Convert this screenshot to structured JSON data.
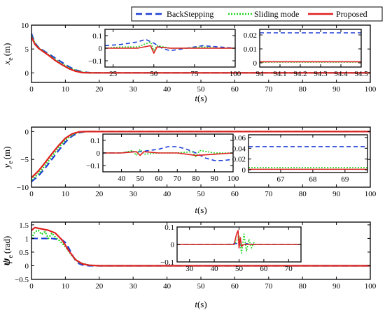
{
  "legend": {
    "entries": [
      {
        "label": "BackStepping",
        "color": "#1f3fd6",
        "dash": "9,5"
      },
      {
        "label": "Sliding mode",
        "color": "#22d622",
        "dash": "2,2"
      },
      {
        "label": "Proposed",
        "color": "#e02020",
        "dash": ""
      }
    ]
  },
  "chart_data": [
    {
      "type": "line",
      "ylabel_main": "x",
      "ylabel_sub": "e",
      "ylabel_unit": "(m)",
      "xlabel_main": "t",
      "xlabel_unit": "(s)",
      "xlim": [
        0,
        100
      ],
      "ylim": [
        -2,
        10
      ],
      "xticks": [
        0,
        10,
        20,
        30,
        40,
        50,
        60,
        70,
        80,
        90,
        100
      ],
      "yticks": [
        0,
        5,
        10
      ],
      "series": [
        {
          "x": [
            0,
            1,
            2,
            3,
            5,
            7,
            9,
            11,
            13,
            15,
            17,
            20,
            100
          ],
          "y": [
            8.2,
            6.3,
            5.4,
            4.9,
            4.0,
            3.1,
            2.2,
            1.3,
            0.6,
            0.2,
            0.05,
            0.0,
            0.0
          ]
        },
        {
          "x": [
            0,
            1,
            2,
            3,
            5,
            7,
            9,
            11,
            13,
            15,
            17,
            20,
            100
          ],
          "y": [
            7.8,
            6.2,
            5.3,
            4.8,
            3.8,
            2.8,
            1.9,
            1.1,
            0.5,
            0.15,
            0.03,
            0.0,
            0.0
          ]
        },
        {
          "x": [
            0,
            1,
            2,
            3,
            5,
            7,
            9,
            11,
            13,
            15,
            17,
            20,
            100
          ],
          "y": [
            7.5,
            6.0,
            5.2,
            4.7,
            3.7,
            2.6,
            1.7,
            0.9,
            0.35,
            0.05,
            0.0,
            0.0,
            0.0
          ]
        }
      ],
      "insets": [
        {
          "xlim": [
            20,
            100
          ],
          "ylim": [
            -0.15,
            0.15
          ],
          "xticks": [
            25,
            50,
            75,
            100
          ],
          "yticks": [
            -0.1,
            0,
            0.1
          ],
          "series": [
            {
              "x": [
                20,
                30,
                40,
                45,
                50,
                55,
                60,
                70,
                80,
                90,
                100
              ],
              "y": [
                0.02,
                0.03,
                0.05,
                0.07,
                0.04,
                0.0,
                -0.02,
                0.0,
                0.02,
                0.01,
                0.0
              ]
            },
            {
              "x": [
                20,
                30,
                40,
                48,
                50,
                52,
                60,
                70,
                80,
                90,
                100
              ],
              "y": [
                0.0,
                0.01,
                0.01,
                0.05,
                -0.02,
                0.02,
                0.0,
                0.0,
                0.01,
                0.0,
                0.0
              ]
            },
            {
              "x": [
                20,
                30,
                40,
                48,
                50,
                52,
                60,
                70,
                80,
                90,
                100
              ],
              "y": [
                0.0,
                0.0,
                0.0,
                0.02,
                -0.04,
                0.01,
                0.0,
                0.0,
                0.0,
                0.0,
                0.0
              ]
            }
          ]
        },
        {
          "xlim": [
            94,
            94.5
          ],
          "ylim": [
            -0.003,
            0.024
          ],
          "xticks": [
            94,
            94.1,
            94.2,
            94.3,
            94.4,
            94.5
          ],
          "yticks": [
            0,
            0.01,
            0.02
          ],
          "xticklabels": [
            "94",
            "94.1",
            "94.2",
            "94.3",
            "94.4",
            "94.5"
          ],
          "series": [
            {
              "x": [
                94,
                94.5
              ],
              "y": [
                0.0215,
                0.0215
              ]
            },
            {
              "x": [
                94,
                94.5
              ],
              "y": [
                0.0005,
                0.0005
              ]
            },
            {
              "x": [
                94,
                94.5
              ],
              "y": [
                0.0008,
                0.0008
              ]
            }
          ]
        }
      ]
    },
    {
      "type": "line",
      "ylabel_main": "y",
      "ylabel_sub": "e",
      "ylabel_unit": "(m)",
      "xlabel_main": "t",
      "xlabel_unit": "(s)",
      "xlim": [
        0,
        100
      ],
      "ylim": [
        -10,
        0.8
      ],
      "xticks": [
        0,
        10,
        20,
        30,
        40,
        50,
        60,
        70,
        80,
        90,
        100
      ],
      "yticks": [
        -10,
        -5,
        0
      ],
      "series": [
        {
          "x": [
            0,
            2,
            4,
            6,
            8,
            10,
            12,
            14,
            16,
            18,
            20,
            100
          ],
          "y": [
            -9.0,
            -8.0,
            -6.6,
            -5.0,
            -3.4,
            -1.9,
            -0.8,
            -0.2,
            0.0,
            0.0,
            0.0,
            0.0
          ]
        },
        {
          "x": [
            0,
            2,
            4,
            6,
            8,
            10,
            12,
            14,
            16,
            18,
            20,
            100
          ],
          "y": [
            -8.7,
            -7.6,
            -6.1,
            -4.5,
            -2.9,
            -1.5,
            -0.6,
            -0.1,
            0.0,
            0.0,
            0.0,
            0.0
          ]
        },
        {
          "x": [
            0,
            2,
            4,
            6,
            8,
            10,
            12,
            14,
            16,
            18,
            20,
            100
          ],
          "y": [
            -8.3,
            -7.1,
            -5.6,
            -4.0,
            -2.5,
            -1.2,
            -0.4,
            -0.05,
            0.0,
            0.0,
            0.0,
            0.0
          ]
        }
      ],
      "insets": [
        {
          "xlim": [
            30,
            100
          ],
          "ylim": [
            -0.15,
            0.15
          ],
          "xticks": [
            40,
            50,
            60,
            70,
            80,
            90,
            100
          ],
          "yticks": [
            -0.1,
            0,
            0.1
          ],
          "series": [
            {
              "x": [
                30,
                40,
                45,
                50,
                55,
                60,
                65,
                70,
                75,
                80,
                85,
                90,
                95,
                100
              ],
              "y": [
                0.0,
                0.0,
                0.01,
                0.01,
                0.02,
                0.03,
                0.05,
                0.05,
                0.03,
                0.0,
                -0.04,
                -0.06,
                -0.06,
                -0.05
              ]
            },
            {
              "x": [
                30,
                40,
                46,
                48,
                50,
                52,
                60,
                70,
                78,
                80,
                82,
                90,
                100
              ],
              "y": [
                0.0,
                0.0,
                0.02,
                -0.02,
                0.03,
                -0.01,
                0.0,
                0.0,
                0.01,
                -0.03,
                0.02,
                0.0,
                0.0
              ]
            },
            {
              "x": [
                30,
                40,
                48,
                50,
                52,
                60,
                70,
                80,
                90,
                100
              ],
              "y": [
                0.0,
                0.0,
                0.01,
                -0.02,
                0.01,
                0.0,
                0.0,
                -0.02,
                -0.01,
                0.0
              ]
            }
          ]
        },
        {
          "xlim": [
            66,
            69.7
          ],
          "ylim": [
            -0.005,
            0.065
          ],
          "xticks": [
            67,
            68,
            69
          ],
          "yticks": [
            0,
            0.02,
            0.04,
            0.06
          ],
          "series": [
            {
              "x": [
                66,
                69.7
              ],
              "y": [
                0.043,
                0.043
              ]
            },
            {
              "x": [
                66,
                69.7
              ],
              "y": [
                0.004,
                0.004
              ]
            },
            {
              "x": [
                66,
                69.7
              ],
              "y": [
                0.001,
                0.001
              ]
            }
          ]
        }
      ]
    },
    {
      "type": "line",
      "ylabel_main": "ψ",
      "ylabel_sub": "e",
      "ylabel_unit": "(rad)",
      "xlabel_main": "t",
      "xlabel_unit": "(s)",
      "xlim": [
        0,
        100
      ],
      "ylim": [
        -0.5,
        1.6
      ],
      "xticks": [
        0,
        10,
        20,
        30,
        40,
        50,
        60,
        70,
        80,
        90,
        100
      ],
      "yticks": [
        -0.5,
        0,
        0.5,
        1,
        1.5
      ],
      "series": [
        {
          "x": [
            0,
            1,
            3,
            6,
            9,
            10,
            11,
            12,
            13,
            14,
            15,
            17,
            20,
            100
          ],
          "y": [
            1.0,
            1.0,
            1.0,
            1.0,
            0.95,
            0.85,
            0.65,
            0.4,
            0.2,
            0.08,
            0.03,
            0.0,
            0.0,
            0.0
          ]
        },
        {
          "x": [
            0,
            1,
            2,
            3,
            4,
            5,
            6,
            7,
            8,
            10,
            12,
            14,
            17,
            20,
            100
          ],
          "y": [
            1.0,
            1.25,
            1.3,
            1.15,
            1.25,
            1.0,
            1.2,
            1.05,
            0.95,
            0.7,
            0.35,
            0.12,
            0.02,
            0.0,
            0.0
          ]
        },
        {
          "x": [
            0,
            1,
            3,
            5,
            7,
            9,
            11,
            13,
            15,
            17,
            20,
            100
          ],
          "y": [
            1.3,
            1.4,
            1.35,
            1.3,
            1.2,
            0.95,
            0.55,
            0.22,
            0.07,
            0.02,
            0.0,
            0.0
          ]
        }
      ],
      "insets": [
        {
          "xlim": [
            25,
            75
          ],
          "ylim": [
            -0.1,
            0.1
          ],
          "xticks": [
            30,
            40,
            50,
            60,
            70
          ],
          "yticks": [
            -0.1,
            0,
            0.1
          ],
          "series": [
            {
              "x": [
                25,
                45,
                49,
                50,
                51,
                53,
                56,
                75
              ],
              "y": [
                0.0,
                0.0,
                0.005,
                0.01,
                -0.01,
                0.005,
                0.0,
                0.0
              ]
            },
            {
              "x": [
                25,
                48,
                49,
                50,
                51,
                52,
                53,
                54,
                55,
                56,
                57,
                75
              ],
              "y": [
                0.0,
                0.0,
                0.02,
                0.05,
                -0.05,
                0.06,
                -0.04,
                0.03,
                -0.02,
                0.01,
                0.0,
                0.0
              ]
            },
            {
              "x": [
                25,
                48,
                49,
                49.6,
                50,
                50.5,
                51,
                52,
                75
              ],
              "y": [
                0.0,
                0.0,
                0.06,
                0.08,
                -0.02,
                0.04,
                -0.01,
                0.0,
                0.0
              ]
            }
          ]
        }
      ]
    }
  ]
}
